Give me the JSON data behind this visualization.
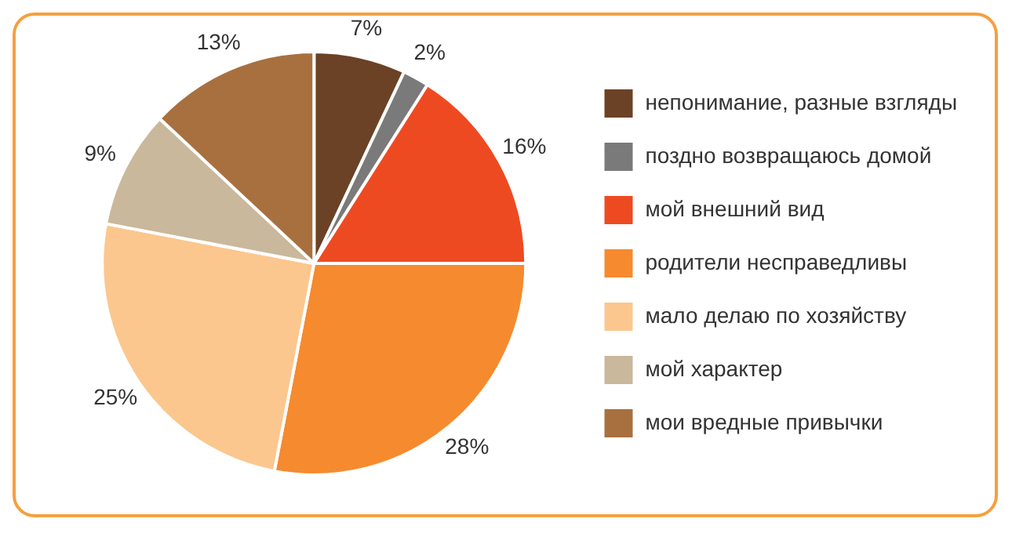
{
  "chart_data": {
    "type": "pie",
    "categories": [
      "непонимание, разные взгляды",
      "поздно возвращаюсь домой",
      "мой внешний вид",
      "родители несправедливы",
      "мало делаю по хозяйству",
      "мой характер",
      "мои вредные привычки"
    ],
    "values": [
      7,
      2,
      16,
      28,
      25,
      9,
      13
    ],
    "colors": [
      "#6b4226",
      "#7a7a7a",
      "#ee4a22",
      "#f68a2e",
      "#fbc78e",
      "#c9b89b",
      "#a8703f"
    ],
    "value_labels": [
      "7%",
      "2%",
      "16%",
      "28%",
      "25%",
      "9%",
      "13%"
    ],
    "legend": "right"
  }
}
